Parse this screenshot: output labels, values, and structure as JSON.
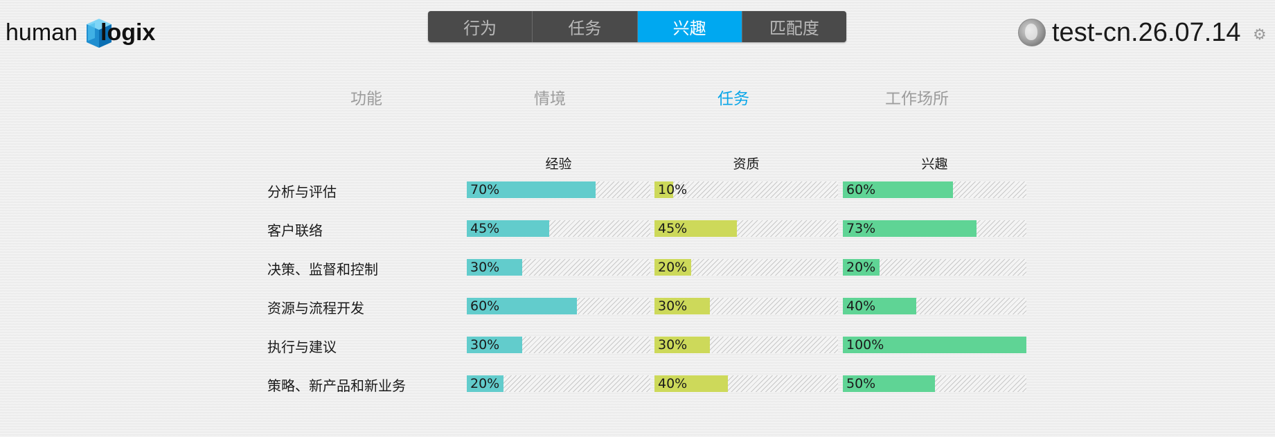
{
  "logo": {
    "part1": "human",
    "part2": "logix"
  },
  "main_tabs": [
    "行为",
    "任务",
    "兴趣",
    "匹配度"
  ],
  "main_tab_active": 2,
  "user": {
    "name": "test-cn.26.07.14"
  },
  "sub_tabs": [
    "功能",
    "情境",
    "任务",
    "工作场所"
  ],
  "sub_tab_active": 2,
  "colors": {
    "accent": "#00a8f0",
    "experience": "#62cccc",
    "qualification": "#cdd95a",
    "interest": "#5fd495"
  },
  "table": {
    "columns": [
      "经验",
      "资质",
      "兴趣"
    ],
    "rows": [
      {
        "label": "分析与评估",
        "values": [
          70,
          10,
          60
        ],
        "display": [
          "70%",
          "10%",
          "60%"
        ]
      },
      {
        "label": "客户联络",
        "values": [
          45,
          45,
          73
        ],
        "display": [
          "45%",
          "45%",
          "73%"
        ]
      },
      {
        "label": "决策、监督和控制",
        "values": [
          30,
          20,
          20
        ],
        "display": [
          "30%",
          "20%",
          "20%"
        ]
      },
      {
        "label": "资源与流程开发",
        "values": [
          60,
          30,
          40
        ],
        "display": [
          "60%",
          "30%",
          "40%"
        ]
      },
      {
        "label": "执行与建议",
        "values": [
          30,
          30,
          100
        ],
        "display": [
          "30%",
          "30%",
          "100%"
        ]
      },
      {
        "label": "策略、新产品和新业务",
        "values": [
          20,
          40,
          50
        ],
        "display": [
          "20%",
          "40%",
          "50%"
        ]
      }
    ]
  }
}
